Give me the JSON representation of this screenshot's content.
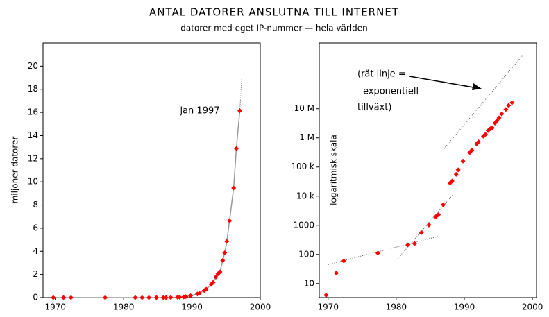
{
  "title": "ANTAL DATORER ANSLUTNA TILL INTERNET",
  "subtitle": "datorer med eget IP-nummer — hela världen",
  "chart_data": [
    {
      "type": "line",
      "ylabel": "miljoner datorer",
      "annotation": "jan 1997",
      "color": "#ff0000",
      "line_color": "#999999",
      "x": [
        1969.7,
        1971.2,
        1972.3,
        1977.3,
        1981.7,
        1982.7,
        1983.7,
        1984.8,
        1985.8,
        1986.2,
        1986.9,
        1987.9,
        1988.2,
        1988.8,
        1989.1,
        1989.8,
        1990.8,
        1991.1,
        1991.8,
        1992.1,
        1992.8,
        1993.1,
        1993.5,
        1993.8,
        1994.1,
        1994.5,
        1994.8,
        1995.1,
        1995.5,
        1996.1,
        1996.5,
        1997.0
      ],
      "values": [
        0,
        0,
        0,
        0,
        0,
        0,
        0.001,
        0.001,
        0.002,
        0.002,
        0.005,
        0.028,
        0.033,
        0.056,
        0.08,
        0.159,
        0.313,
        0.376,
        0.617,
        0.727,
        1.136,
        1.313,
        1.776,
        2.056,
        2.217,
        3.212,
        3.864,
        4.852,
        6.642,
        9.472,
        12.881,
        16.146
      ],
      "trend_lines": [
        [
          [
            1997.0,
            16.146
          ],
          [
            1997.3,
            19
          ]
        ]
      ],
      "xlim": [
        1968.2,
        2000
      ],
      "xticks": [
        1970,
        1980,
        1990,
        2000
      ],
      "ylim": [
        0,
        22
      ],
      "yticks": [
        0,
        2,
        4,
        6,
        8,
        10,
        12,
        14,
        16,
        18,
        20
      ]
    },
    {
      "type": "scatter",
      "ylabel": "logaritmisk skala",
      "annotation": [
        "(rät linje =",
        "exponentiell",
        "tillväxt)"
      ],
      "color": "#ff0000",
      "log_y": true,
      "x": [
        1969.7,
        1971.2,
        1972.3,
        1977.3,
        1981.7,
        1982.7,
        1983.7,
        1984.8,
        1985.8,
        1986.2,
        1986.9,
        1987.9,
        1988.2,
        1988.8,
        1989.1,
        1989.8,
        1990.8,
        1991.1,
        1991.8,
        1992.1,
        1992.8,
        1993.1,
        1993.5,
        1993.8,
        1994.1,
        1994.5,
        1994.8,
        1995.1,
        1995.5,
        1996.1,
        1996.5,
        1997.0
      ],
      "values": [
        4,
        23,
        60,
        111,
        213,
        235,
        562,
        1024,
        1961,
        2308,
        5089,
        28174,
        33000,
        56000,
        80000,
        159000,
        313000,
        376000,
        617000,
        727000,
        1136000,
        1313000,
        1776000,
        2056000,
        2217000,
        3212000,
        3864000,
        4852000,
        6642000,
        9472000,
        12881000,
        16146000
      ],
      "trend_lines": [
        [
          [
            1970,
            45
          ],
          [
            1986.2,
            420
          ]
        ],
        [
          [
            1980.2,
            70
          ],
          [
            1988.3,
            11000
          ]
        ],
        [
          [
            1987,
            420000
          ],
          [
            1998.6,
            700000000
          ]
        ]
      ],
      "xlim": [
        1968.7,
        2000.6
      ],
      "xticks": [
        1970,
        1980,
        1990,
        2000
      ],
      "ylim": [
        3.3,
        1800000000
      ],
      "yticks": [
        10,
        100,
        1000,
        {
          "value": 10000,
          "label": "10 k"
        },
        {
          "value": 100000,
          "label": "100 k"
        },
        {
          "value": 1000000,
          "label": "1 M"
        },
        {
          "value": 10000000,
          "label": "10 M"
        }
      ]
    }
  ]
}
